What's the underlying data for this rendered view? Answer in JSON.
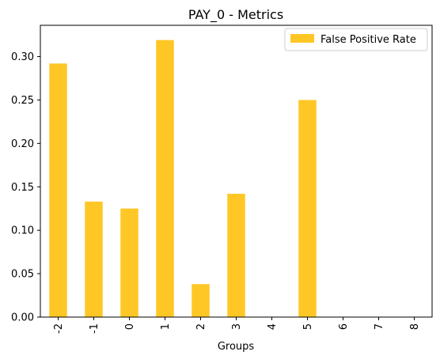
{
  "chart_data": {
    "type": "bar",
    "title": "PAY_0 - Metrics",
    "xlabel": "Groups",
    "ylabel": "",
    "categories": [
      "-2",
      "-1",
      "0",
      "1",
      "2",
      "3",
      "4",
      "5",
      "6",
      "7",
      "8"
    ],
    "series": [
      {
        "name": "False Positive Rate",
        "color": "#ffc726",
        "values": [
          0.292,
          0.133,
          0.125,
          0.319,
          0.038,
          0.142,
          0.0,
          0.25,
          0.0,
          0.0,
          0.0
        ]
      }
    ],
    "ylim": [
      0,
      0.336
    ],
    "yticks": [
      "0.00",
      "0.05",
      "0.10",
      "0.15",
      "0.20",
      "0.25",
      "0.30"
    ],
    "legend_position": "top-right",
    "grid": false
  }
}
